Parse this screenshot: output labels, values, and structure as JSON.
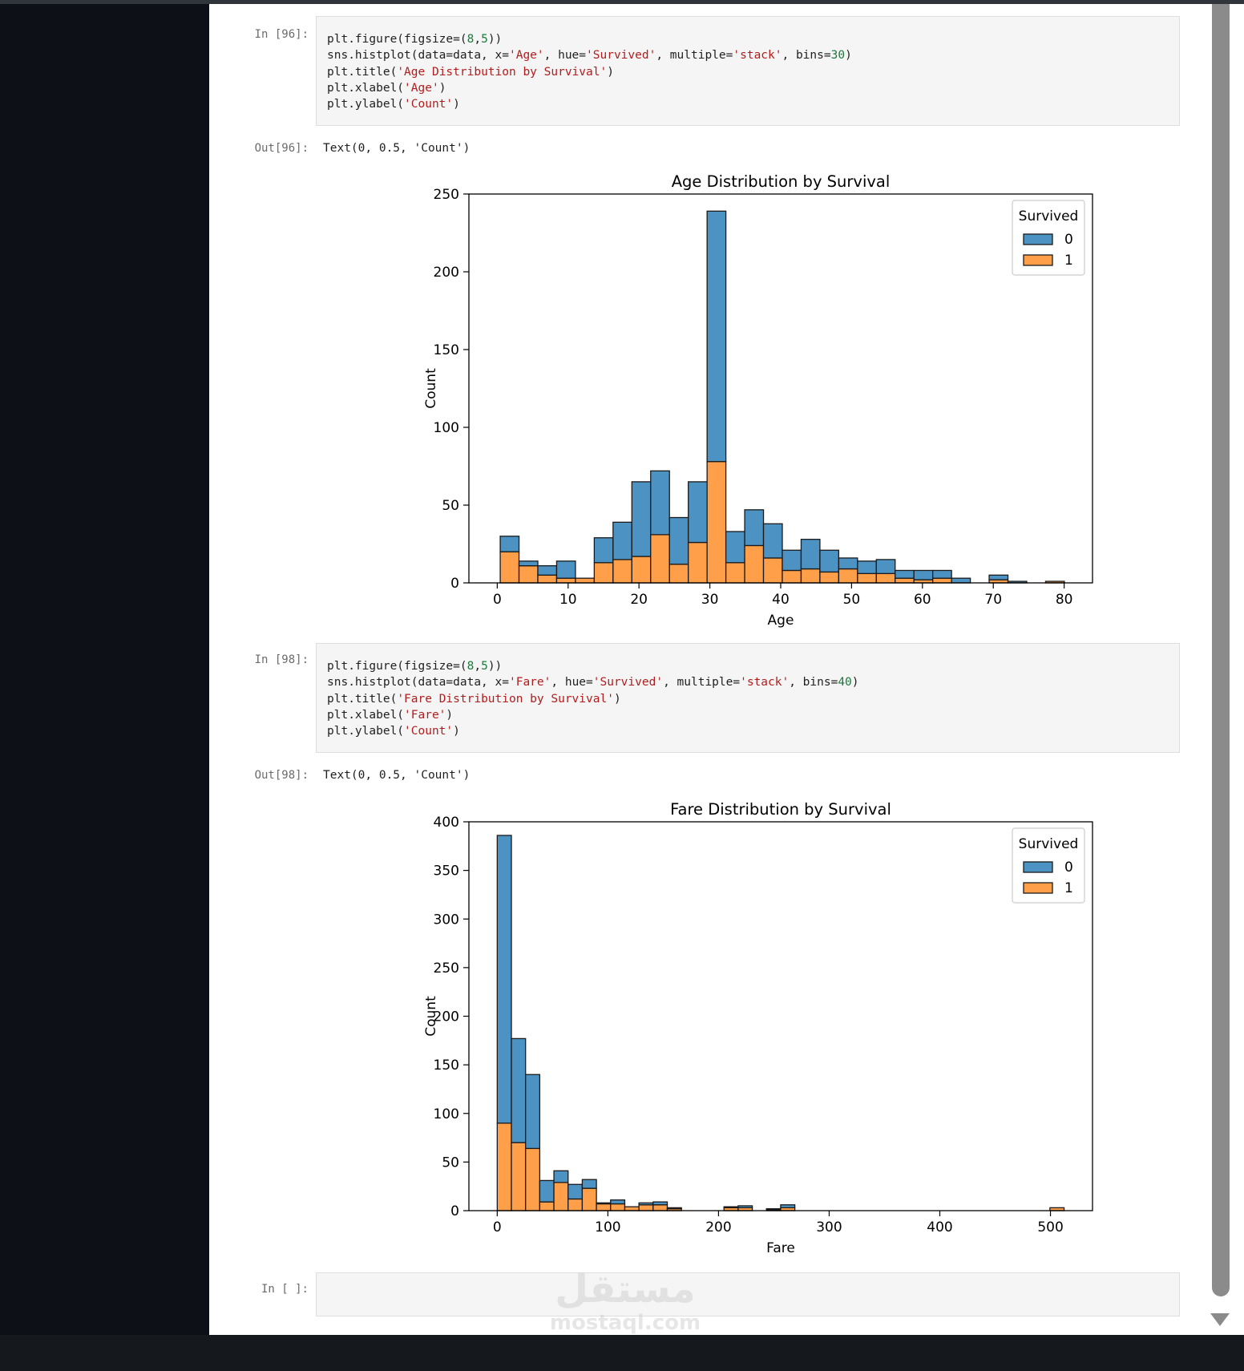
{
  "notebook": {
    "cells": [
      {
        "in_prompt": "In [96]:",
        "code_lines": [
          [
            [
              "plt.figure(figsize=(",
              ""
            ],
            [
              "8",
              "n"
            ],
            [
              ",",
              ""
            ],
            [
              "5",
              "n"
            ],
            [
              "))",
              ""
            ]
          ],
          [
            [
              "sns.histplot(data=data, x=",
              ""
            ],
            [
              "'Age'",
              "s"
            ],
            [
              ", hue=",
              ""
            ],
            [
              "'Survived'",
              "s"
            ],
            [
              ", multiple=",
              ""
            ],
            [
              "'stack'",
              "s"
            ],
            [
              ", bins=",
              ""
            ],
            [
              "30",
              "n"
            ],
            [
              ")",
              ""
            ]
          ],
          [
            [
              "plt.title(",
              ""
            ],
            [
              "'Age Distribution by Survival'",
              "s"
            ],
            [
              ")",
              ""
            ]
          ],
          [
            [
              "plt.xlabel(",
              ""
            ],
            [
              "'Age'",
              "s"
            ],
            [
              ")",
              ""
            ]
          ],
          [
            [
              "plt.ylabel(",
              ""
            ],
            [
              "'Count'",
              "s"
            ],
            [
              ")",
              ""
            ]
          ]
        ],
        "out_prompt": "Out[96]:",
        "out_text": "Text(0, 0.5, 'Count')"
      },
      {
        "in_prompt": "In [98]:",
        "code_lines": [
          [
            [
              "plt.figure(figsize=(",
              ""
            ],
            [
              "8",
              "n"
            ],
            [
              ",",
              ""
            ],
            [
              "5",
              "n"
            ],
            [
              "))",
              ""
            ]
          ],
          [
            [
              "sns.histplot(data=data, x=",
              ""
            ],
            [
              "'Fare'",
              "s"
            ],
            [
              ", hue=",
              ""
            ],
            [
              "'Survived'",
              "s"
            ],
            [
              ", multiple=",
              ""
            ],
            [
              "'stack'",
              "s"
            ],
            [
              ", bins=",
              ""
            ],
            [
              "40",
              "n"
            ],
            [
              ")",
              ""
            ]
          ],
          [
            [
              "plt.title(",
              ""
            ],
            [
              "'Fare Distribution by Survival'",
              "s"
            ],
            [
              ")",
              ""
            ]
          ],
          [
            [
              "plt.xlabel(",
              ""
            ],
            [
              "'Fare'",
              "s"
            ],
            [
              ")",
              ""
            ]
          ],
          [
            [
              "plt.ylabel(",
              ""
            ],
            [
              "'Count'",
              "s"
            ],
            [
              ")",
              ""
            ]
          ]
        ],
        "out_prompt": "Out[98]:",
        "out_text": "Text(0, 0.5, 'Count')"
      },
      {
        "in_prompt": "In [ ]:"
      }
    ]
  },
  "watermark": {
    "arabic": "مستقل",
    "latin": "mostaql.com"
  },
  "colors": {
    "survived_0": "#4c92c3",
    "survived_1": "#ff9f4a",
    "edge": "#1a1a1a"
  },
  "chart_data": [
    {
      "type": "bar",
      "title": "Age Distribution by Survival",
      "xlabel": "Age",
      "ylabel": "Count",
      "xlim": [
        -4,
        84
      ],
      "ylim": [
        0,
        250
      ],
      "xticks": [
        0,
        10,
        20,
        30,
        40,
        50,
        60,
        70,
        80
      ],
      "yticks": [
        0,
        50,
        100,
        150,
        200,
        250
      ],
      "bin_width": 2.6537,
      "bin_start": 0.42,
      "legend": {
        "title": "Survived",
        "entries": [
          "0",
          "1"
        ],
        "position": "top-right"
      },
      "series": [
        {
          "name": "0",
          "values": [
            10,
            3,
            6,
            11,
            0,
            16,
            24,
            48,
            41,
            30,
            39,
            161,
            20,
            23,
            22,
            13,
            19,
            14,
            7,
            8,
            9,
            5,
            6,
            5,
            3,
            0,
            3,
            1,
            0,
            0
          ]
        },
        {
          "name": "1",
          "values": [
            20,
            11,
            5,
            3,
            3,
            13,
            15,
            17,
            31,
            12,
            26,
            78,
            13,
            24,
            16,
            8,
            9,
            7,
            9,
            6,
            6,
            3,
            2,
            3,
            0,
            0,
            2,
            0,
            0,
            1
          ]
        }
      ]
    },
    {
      "type": "bar",
      "title": "Fare Distribution by Survival",
      "xlabel": "Fare",
      "ylabel": "Count",
      "xlim": [
        -25.6,
        538
      ],
      "ylim": [
        0,
        400
      ],
      "xticks": [
        0,
        100,
        200,
        300,
        400,
        500
      ],
      "yticks": [
        0,
        50,
        100,
        150,
        200,
        250,
        300,
        350,
        400
      ],
      "bin_width": 12.808,
      "bin_start": 0,
      "legend": {
        "title": "Survived",
        "entries": [
          "0",
          "1"
        ],
        "position": "top-right"
      },
      "series": [
        {
          "name": "0",
          "values": [
            296,
            107,
            76,
            22,
            12,
            15,
            9,
            1,
            4,
            0,
            2,
            3,
            1,
            0,
            0,
            0,
            1,
            2,
            0,
            1,
            3,
            0,
            0,
            0,
            0,
            0,
            0,
            0,
            0,
            0,
            0,
            0,
            0,
            0,
            0,
            0,
            0,
            0,
            0,
            0
          ]
        },
        {
          "name": "1",
          "values": [
            90,
            70,
            64,
            9,
            29,
            12,
            23,
            7,
            7,
            4,
            6,
            6,
            2,
            0,
            0,
            0,
            3,
            3,
            0,
            1,
            3,
            0,
            0,
            0,
            0,
            0,
            0,
            0,
            0,
            0,
            0,
            0,
            0,
            0,
            0,
            0,
            0,
            0,
            0,
            3
          ]
        }
      ]
    }
  ]
}
